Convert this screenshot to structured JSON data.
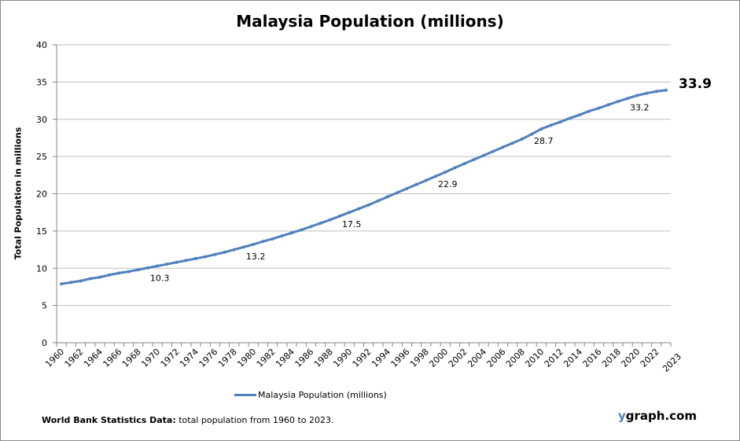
{
  "chart_data": {
    "type": "line",
    "title": "Malaysia Population (millions)",
    "ylabel": "Total Population  in millions",
    "xlabel": "",
    "ylim": [
      0,
      40
    ],
    "yticks": [
      0,
      5,
      10,
      15,
      20,
      25,
      30,
      35,
      40
    ],
    "xtick_labels": [
      "1960",
      "1962",
      "1964",
      "1966",
      "1968",
      "1970",
      "1972",
      "1974",
      "1976",
      "1978",
      "1980",
      "1982",
      "1984",
      "1986",
      "1988",
      "1990",
      "1992",
      "1994",
      "1996",
      "1998",
      "2000",
      "2002",
      "2004",
      "2006",
      "2008",
      "2010",
      "2012",
      "2014",
      "2016",
      "2018",
      "2020",
      "2022",
      "2023"
    ],
    "grid": "horizontal",
    "legend_position": "bottom",
    "color": "#4f81bd",
    "x": [
      1960,
      1961,
      1962,
      1963,
      1964,
      1965,
      1966,
      1967,
      1968,
      1969,
      1970,
      1971,
      1972,
      1973,
      1974,
      1975,
      1976,
      1977,
      1978,
      1979,
      1980,
      1981,
      1982,
      1983,
      1984,
      1985,
      1986,
      1987,
      1988,
      1989,
      1990,
      1991,
      1992,
      1993,
      1994,
      1995,
      1996,
      1997,
      1998,
      1999,
      2000,
      2001,
      2002,
      2003,
      2004,
      2005,
      2006,
      2007,
      2008,
      2009,
      2010,
      2011,
      2012,
      2013,
      2014,
      2015,
      2016,
      2017,
      2018,
      2019,
      2020,
      2021,
      2022,
      2023
    ],
    "series": [
      {
        "name": "Malaysia Population (millions)",
        "values": [
          7.9,
          8.1,
          8.3,
          8.6,
          8.8,
          9.1,
          9.35,
          9.55,
          9.8,
          10.05,
          10.3,
          10.55,
          10.8,
          11.05,
          11.3,
          11.55,
          11.85,
          12.15,
          12.5,
          12.85,
          13.2,
          13.6,
          13.95,
          14.35,
          14.75,
          15.15,
          15.6,
          16.05,
          16.5,
          17.0,
          17.5,
          18.0,
          18.5,
          19.05,
          19.6,
          20.15,
          20.7,
          21.25,
          21.8,
          22.35,
          22.9,
          23.5,
          24.05,
          24.6,
          25.15,
          25.7,
          26.25,
          26.8,
          27.35,
          28.0,
          28.7,
          29.2,
          29.65,
          30.15,
          30.6,
          31.1,
          31.5,
          31.95,
          32.4,
          32.8,
          33.2,
          33.5,
          33.75,
          33.9
        ]
      }
    ],
    "data_labels": [
      {
        "year": 1970,
        "text": "10.3"
      },
      {
        "year": 1980,
        "text": "13.2"
      },
      {
        "year": 1990,
        "text": "17.5"
      },
      {
        "year": 2000,
        "text": "22.9"
      },
      {
        "year": 2010,
        "text": "28.7"
      },
      {
        "year": 2020,
        "text": "33.2"
      }
    ],
    "last_value_label": "33.9"
  },
  "legend": {
    "label": "Malaysia Population (millions)"
  },
  "footer": {
    "bold": "World Bank Statistics Data:",
    "text": " total population from 1960 to 2023."
  },
  "brand": {
    "y": "y",
    "rest": "graph.com"
  }
}
